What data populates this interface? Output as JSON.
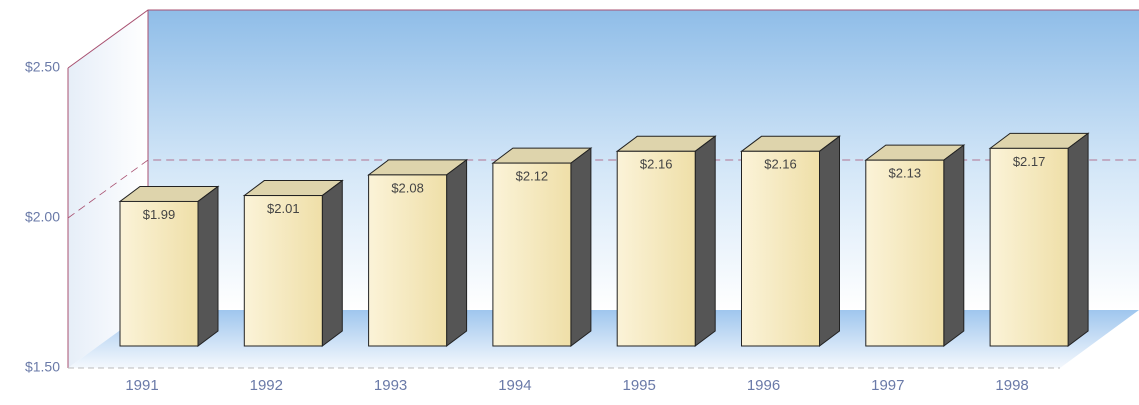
{
  "chart_data": {
    "type": "bar3d",
    "categories": [
      "1991",
      "1992",
      "1993",
      "1994",
      "1995",
      "1996",
      "1997",
      "1998"
    ],
    "values": [
      1.99,
      2.01,
      2.08,
      2.12,
      2.16,
      2.16,
      2.13,
      2.17
    ],
    "value_labels": [
      "$1.99",
      "$2.01",
      "$2.08",
      "$2.12",
      "$2.16",
      "$2.16",
      "$2.13",
      "$2.17"
    ],
    "color": "#f2e4b4",
    "ylim": [
      1.5,
      2.5
    ],
    "yticks": [
      {
        "value": 1.5,
        "label": "$1.50"
      },
      {
        "value": 2.0,
        "label": "$2.00"
      },
      {
        "value": 2.5,
        "label": "$2.50"
      }
    ],
    "grid": true
  }
}
